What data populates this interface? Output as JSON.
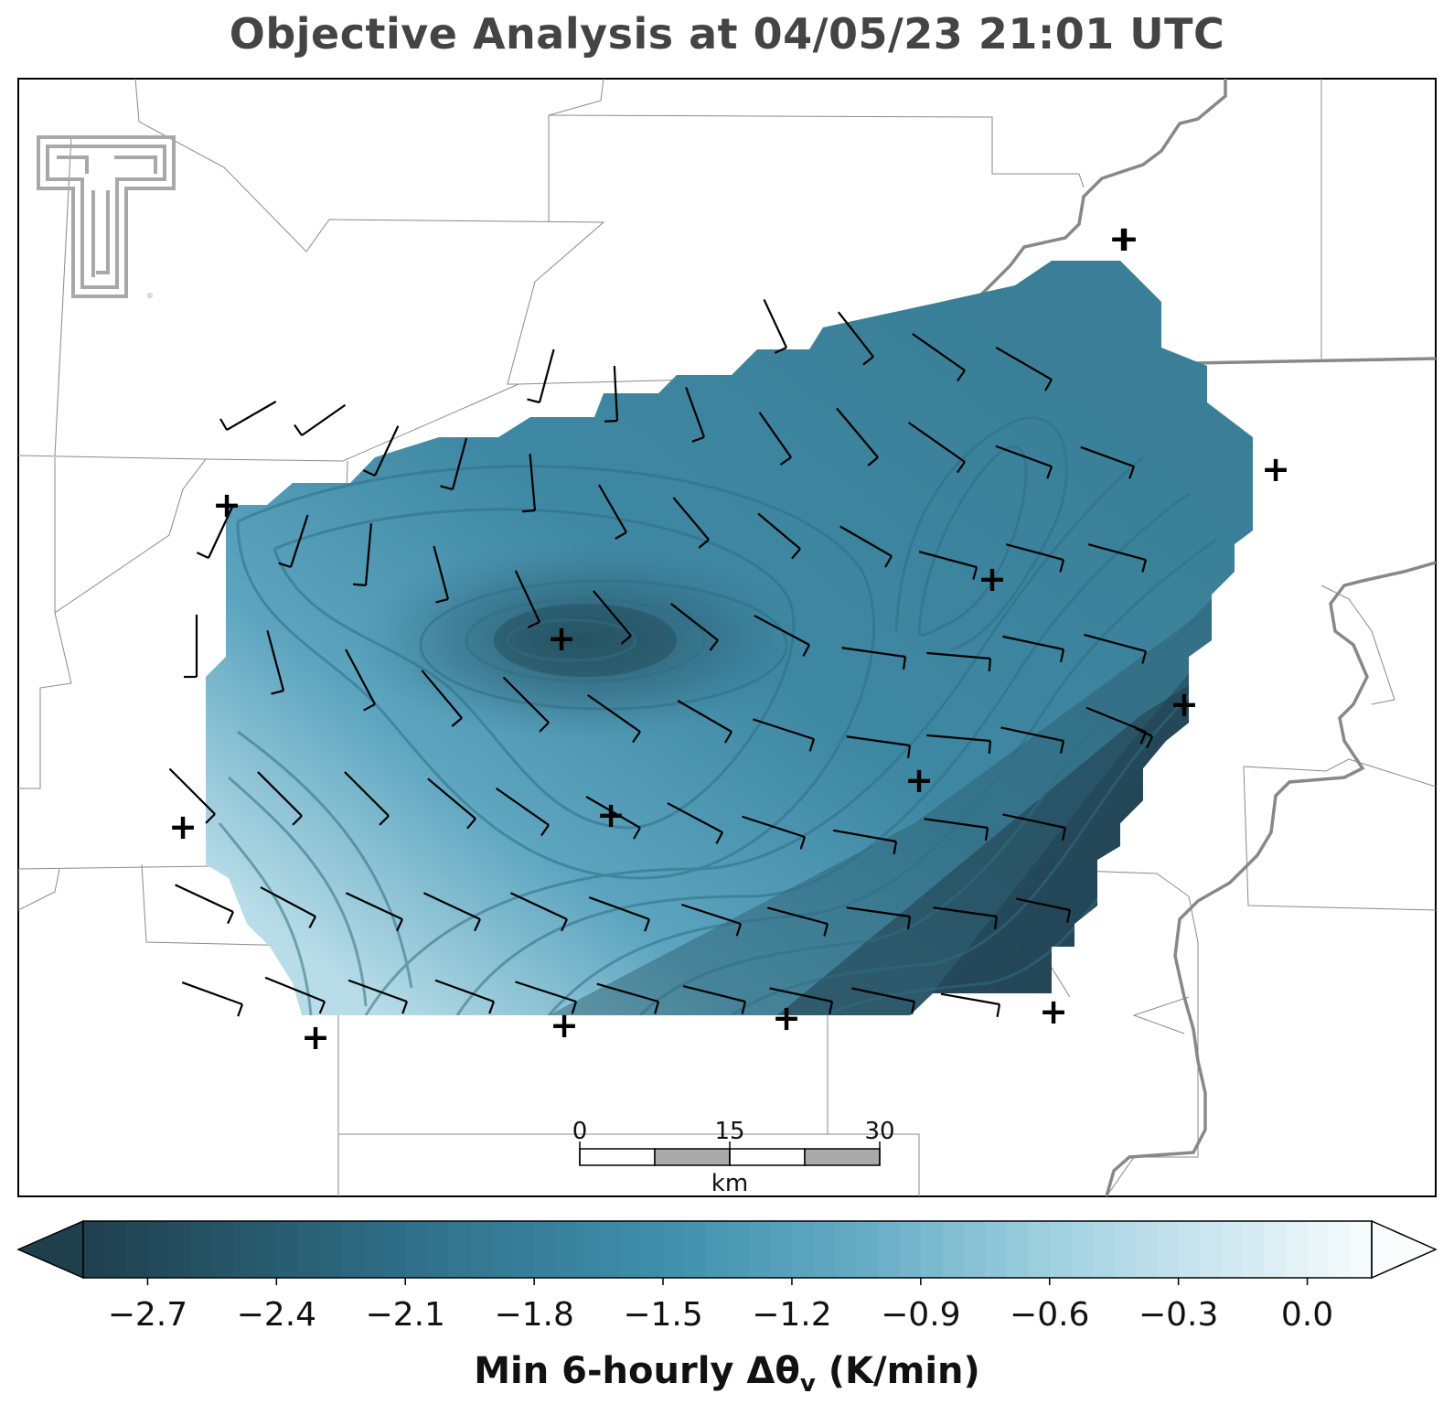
{
  "title": "Objective Analysis at 04/05/23 21:01 UTC",
  "colorbar": {
    "label_main": "Min 6-hourly Δθ",
    "label_sub": "v",
    "label_unit": " (K/min)",
    "ticks": [
      "−2.7",
      "−2.4",
      "−2.1",
      "−1.8",
      "−1.5",
      "−1.2",
      "−0.9",
      "−0.6",
      "−0.3",
      "0.0"
    ],
    "tick_values": [
      -2.7,
      -2.4,
      -2.1,
      -1.8,
      -1.5,
      -1.2,
      -0.9,
      -0.6,
      -0.3,
      0.0
    ],
    "range": [
      -2.85,
      0.15
    ],
    "extend": "both",
    "colors": {
      "darkest": "#1f3f4d",
      "mid_dark": "#2f6f87",
      "mid": "#3f8fab",
      "light": "#9fd0e0",
      "lightest": "#f8fcfd"
    }
  },
  "scale_bar": {
    "ticks": [
      "0",
      "15",
      "30"
    ],
    "unit": "km"
  },
  "logo": {
    "name": "texas-tech-double-t-logo",
    "color": "#a8a8a8"
  },
  "map": {
    "field_name": "Min 6-hourly Δθv",
    "station_marker": "+",
    "station_count": 14,
    "barb_color": "#000000",
    "border_color": "#888888"
  }
}
